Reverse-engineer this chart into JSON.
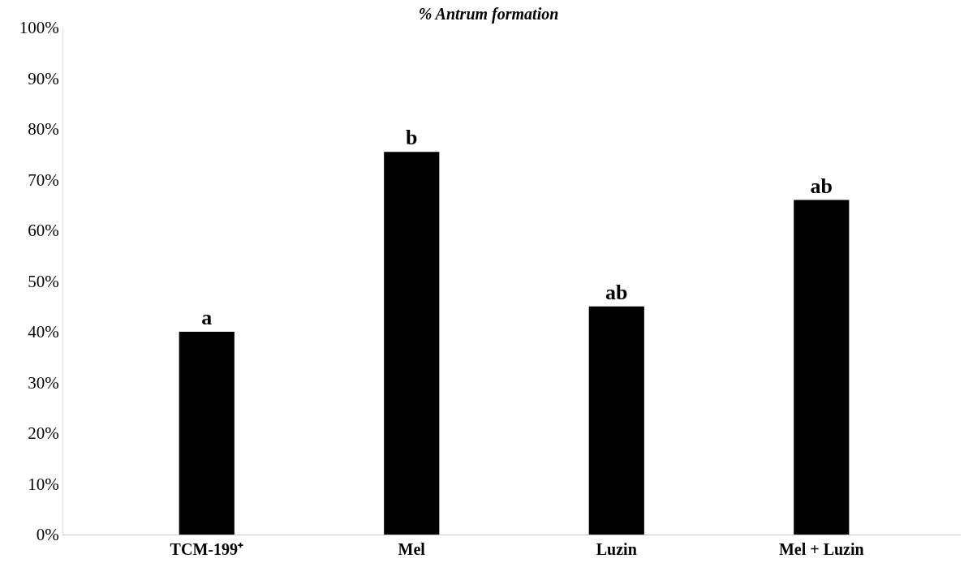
{
  "chart_data": {
    "type": "bar",
    "title": "% Antrum formation",
    "categories": [
      "TCM-199⁺",
      "Mel",
      "Luzin",
      "Mel + Luzin"
    ],
    "values": [
      40,
      75.5,
      45,
      66
    ],
    "color": "#000000",
    "ylim": [
      0,
      100
    ],
    "yticks": [
      {
        "value": 0,
        "label": "0%"
      },
      {
        "value": 10,
        "label": "10%"
      },
      {
        "value": 20,
        "label": "20%"
      },
      {
        "value": 30,
        "label": "30%"
      },
      {
        "value": 40,
        "label": "40%"
      },
      {
        "value": 50,
        "label": "50%"
      },
      {
        "value": 60,
        "label": "60%"
      },
      {
        "value": 70,
        "label": "70%"
      },
      {
        "value": 80,
        "label": "80%"
      },
      {
        "value": 90,
        "label": "90%"
      },
      {
        "value": 100,
        "label": "100%"
      }
    ],
    "value_labels": [
      "a",
      "b",
      "ab",
      "ab"
    ],
    "grid": false
  }
}
